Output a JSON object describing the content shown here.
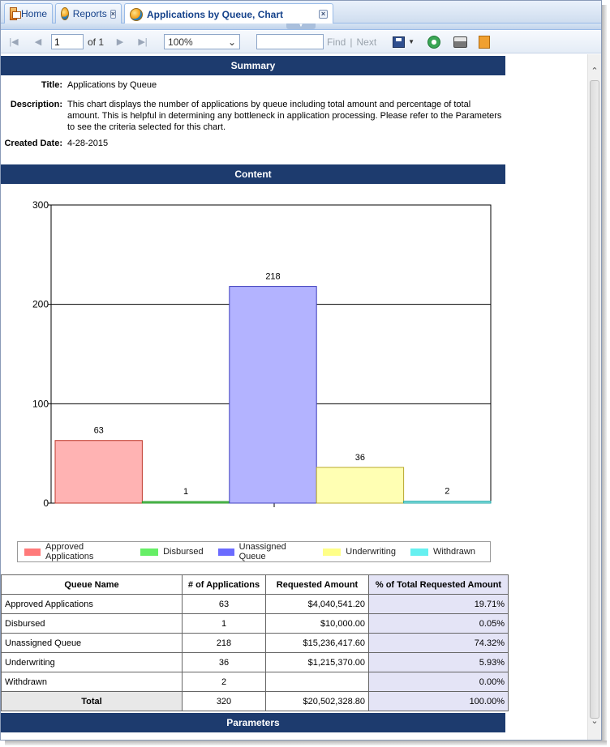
{
  "tabs": [
    {
      "label": "Home",
      "icon": "home-icon"
    },
    {
      "label": "Reports",
      "icon": "reports-icon"
    },
    {
      "label": "Applications by Queue, Chart",
      "icon": "report-globe-icon"
    }
  ],
  "toolbar": {
    "page_value": "1",
    "page_of": "of 1",
    "zoom": "100%",
    "find_label": "Find",
    "next_label": "Next",
    "find_value": ""
  },
  "summary": {
    "header": "Summary",
    "title_label": "Title:",
    "title_value": "Applications by Queue",
    "description_label": "Description:",
    "description_value": "This chart displays the number of applications by queue including total amount and percentage of total amount. This is helpful in determining any bottleneck in application processing. Please refer to the Parameters to see the criteria selected for this chart.",
    "created_label": "Created Date:",
    "created_value": "4-28-2015"
  },
  "content": {
    "header": "Content"
  },
  "chart_data": {
    "type": "bar",
    "categories": [
      "Approved Applications",
      "Disbursed",
      "Unassigned Queue",
      "Underwriting",
      "Withdrawn"
    ],
    "values": [
      63,
      1,
      218,
      36,
      2
    ],
    "data_labels": [
      "63",
      "1",
      "218",
      "36",
      "2"
    ],
    "colors": [
      "#ffb3b3",
      "#5ec95e",
      "#b3b3ff",
      "#ffffb3",
      "#8ce9e9"
    ],
    "edge_colors": [
      "#c0392b",
      "#2e9b2e",
      "#4040c0",
      "#b8a82e",
      "#2aa5a5"
    ],
    "legend_colors": [
      "#ff7a7a",
      "#66ee66",
      "#6b6bff",
      "#ffff88",
      "#66f0f0"
    ],
    "ylim": [
      0,
      300
    ],
    "yticks": [
      "0",
      "100",
      "200",
      "300"
    ],
    "grid": true,
    "legend": "bottom"
  },
  "table": {
    "headers": [
      "Queue Name",
      "# of Applications",
      "Requested Amount",
      "% of Total Requested Amount"
    ],
    "rows": [
      [
        "Approved Applications",
        "63",
        "$4,040,541.20",
        "19.71%"
      ],
      [
        "Disbursed",
        "1",
        "$10,000.00",
        "0.05%"
      ],
      [
        "Unassigned Queue",
        "218",
        "$15,236,417.60",
        "74.32%"
      ],
      [
        "Underwriting",
        "36",
        "$1,215,370.00",
        "5.93%"
      ],
      [
        "Withdrawn",
        "2",
        "",
        "0.00%"
      ]
    ],
    "total": [
      "Total",
      "320",
      "$20,502,328.80",
      "100.00%"
    ]
  },
  "parameters": {
    "header": "Parameters"
  }
}
